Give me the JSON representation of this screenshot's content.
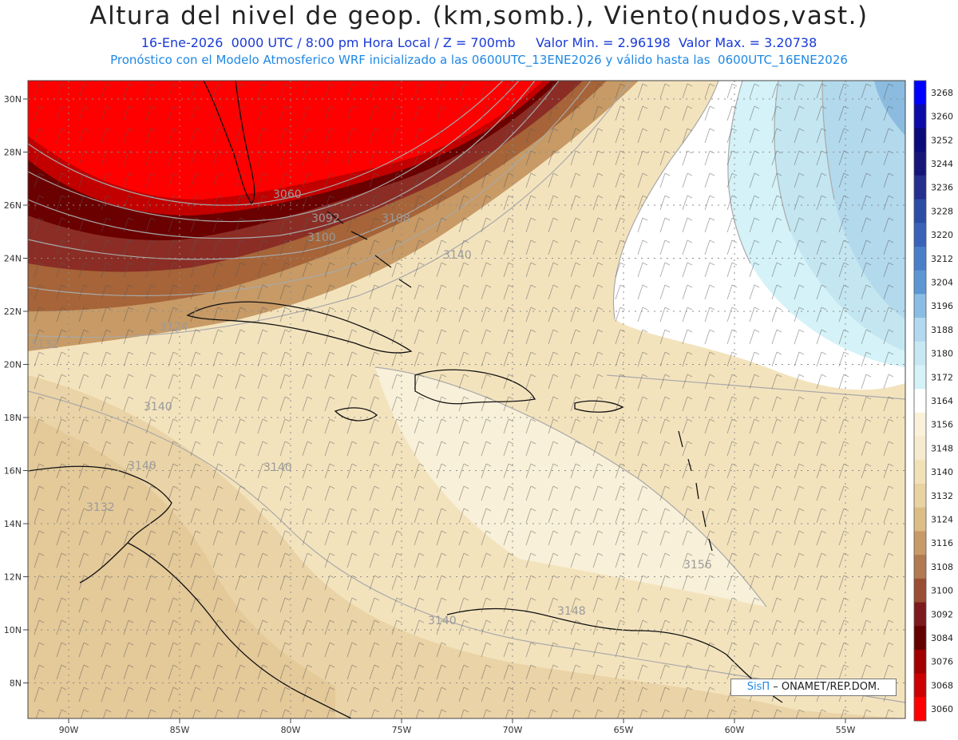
{
  "header": {
    "title": "Altura del nivel de geop. (km,somb.), Viento(nudos,vast.)",
    "subtitle_date": "16-Ene-2026",
    "subtitle_time": "0000 UTC / 8:00 pm Hora Local / Z = 700mb",
    "subtitle_min": "Valor Min. = 2.96198",
    "subtitle_max": "Valor Max. = 3.20738",
    "subtitle_model": "Pronóstico con el Modelo Atmosferico WRF inicializado a las 0600UTC_13ENE2026 y válido hasta las  0600UTC_16ENE2026"
  },
  "map": {
    "lon_ticks": [
      "90W",
      "85W",
      "80W",
      "75W",
      "70W",
      "65W",
      "60W",
      "55W"
    ],
    "lat_ticks": [
      "30N",
      "28N",
      "26N",
      "24N",
      "22N",
      "20N",
      "18N",
      "16N",
      "14N",
      "12N",
      "10N",
      "8N"
    ],
    "contour_labels": [
      "3060",
      "3092",
      "3108",
      "3100",
      "3140",
      "3124",
      "3132",
      "3140",
      "3140",
      "3140",
      "3132",
      "3156",
      "3148",
      "3140"
    ],
    "colors": {
      "low": "#ff0000",
      "mid": "#f2e1b8",
      "high": "#5b86c9"
    }
  },
  "colorbar": {
    "labels": [
      "3268",
      "3260",
      "3252",
      "3244",
      "3236",
      "3228",
      "3220",
      "3212",
      "3204",
      "3196",
      "3188",
      "3180",
      "3172",
      "3164",
      "3156",
      "3148",
      "3140",
      "3132",
      "3124",
      "3116",
      "3108",
      "3100",
      "3092",
      "3084",
      "3076",
      "3068",
      "3060"
    ],
    "colors": [
      "#0000ff",
      "#0c0aa8",
      "#0b0a7a",
      "#15157a",
      "#252f8e",
      "#2c4da6",
      "#3a62b8",
      "#4a7ec8",
      "#5c97d4",
      "#89bde4",
      "#b2d9ef",
      "#c7e8f3",
      "#d4f2f7",
      "#ffffff",
      "#f9f1da",
      "#f7ebcf",
      "#f1e1b7",
      "#e9d3a2",
      "#dcbd86",
      "#c89a68",
      "#b27a50",
      "#9a4f34",
      "#7c1a1e",
      "#640000",
      "#a20000",
      "#cc0000",
      "#ff0000"
    ]
  },
  "credit": {
    "brand": "SisΠ",
    "text": "– ONAMET/REP.DOM."
  }
}
